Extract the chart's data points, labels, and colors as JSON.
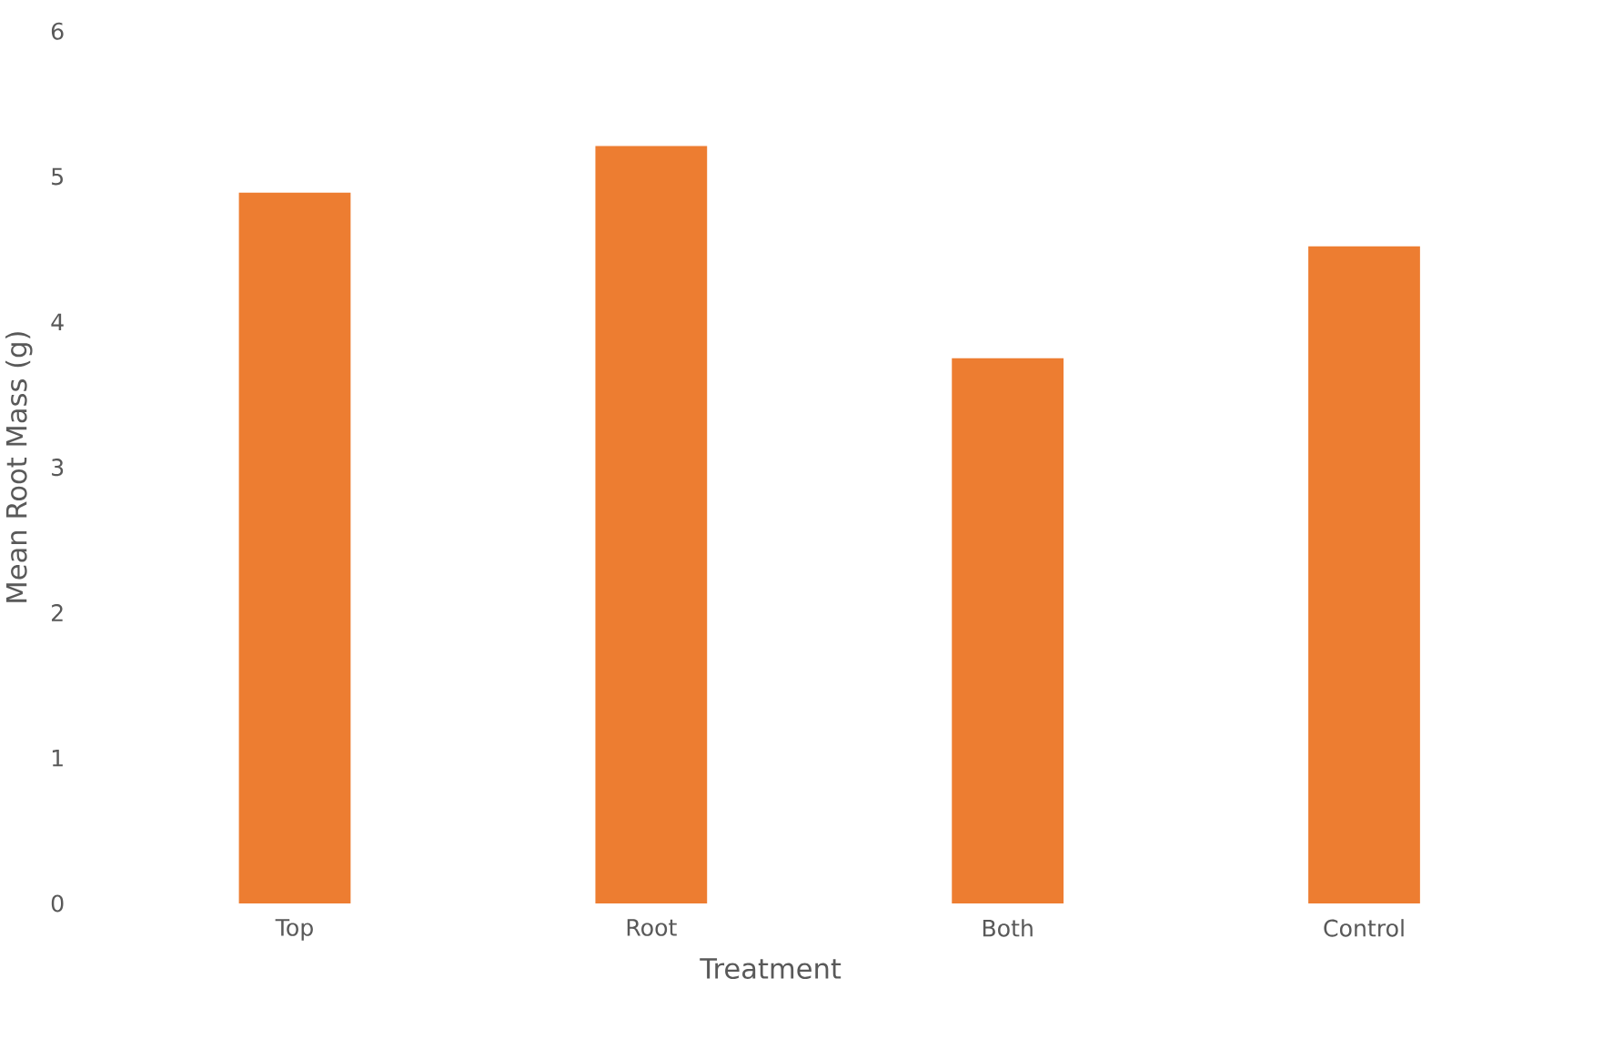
{
  "chart_data": {
    "type": "bar",
    "xlabel": "Treatment",
    "ylabel": "Mean Root Mass (g)",
    "categories": [
      "Top",
      "Root",
      "Both",
      "Control"
    ],
    "values": [
      4.89,
      5.21,
      3.75,
      4.52
    ],
    "color": "#ed7d31",
    "ylim": [
      0,
      6
    ],
    "yticks": [
      0,
      1,
      2,
      3,
      4,
      5,
      6
    ],
    "grid": false
  }
}
